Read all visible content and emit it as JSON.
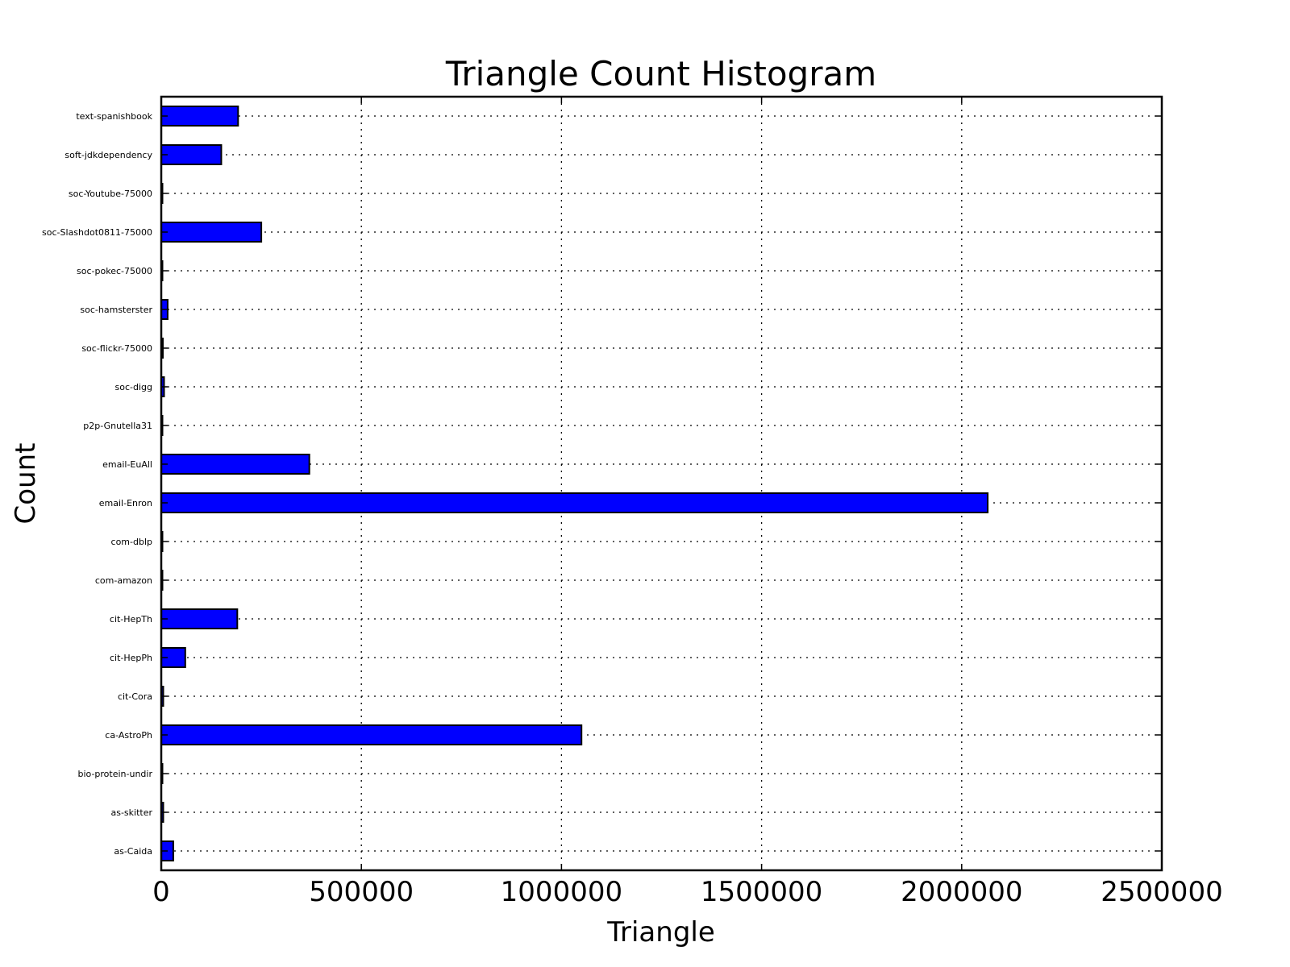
{
  "chart_data": {
    "type": "bar",
    "orientation": "horizontal",
    "title": "Triangle Count Histogram",
    "xlabel": "Triangle",
    "ylabel": "Count",
    "xlim": [
      0,
      2500000
    ],
    "x_ticks": [
      "0",
      "500000",
      "1000000",
      "1500000",
      "2000000",
      "2500000"
    ],
    "grid": true,
    "bar_color": "#0000ff",
    "edge_color": "#000000",
    "categories": [
      "as-Caida",
      "as-skitter",
      "bio-protein-undir",
      "ca-AstroPh",
      "cit-Cora",
      "cit-HepPh",
      "cit-HepTh",
      "com-amazon",
      "com-dblp",
      "email-Enron",
      "email-EuAll",
      "p2p-Gnutella31",
      "soc-digg",
      "soc-flickr-75000",
      "soc-hamsterster",
      "soc-pokec-75000",
      "soc-Slashdot0811-75000",
      "soc-Youtube-75000",
      "soft-jdkdependency",
      "text-spanishbook"
    ],
    "values": [
      30000,
      5000,
      1000,
      1050000,
      5000,
      60000,
      190000,
      500,
      500,
      2065000,
      370000,
      500,
      7000,
      4000,
      16000,
      1000,
      250000,
      500,
      150000,
      192000
    ]
  }
}
